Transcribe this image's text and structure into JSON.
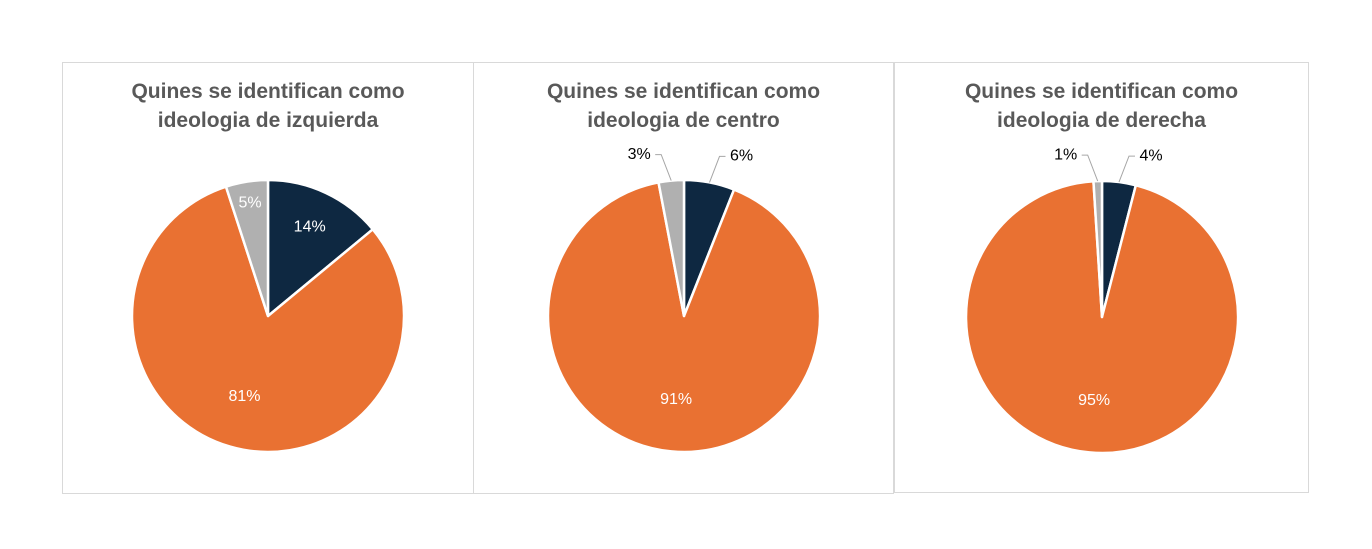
{
  "colors": {
    "dark": "#0e2841",
    "orange": "#e97132",
    "gray": "#b0b0b0"
  },
  "chart_data": [
    {
      "type": "pie",
      "title_lines": [
        "Quines se identifican como",
        "ideologia de izquierda"
      ],
      "slices": [
        {
          "value": 14,
          "label": "14%",
          "color": "dark"
        },
        {
          "value": 81,
          "label": "81%",
          "color": "orange"
        },
        {
          "value": 5,
          "label": "5%",
          "color": "gray"
        }
      ]
    },
    {
      "type": "pie",
      "title_lines": [
        "Quines se identifican como",
        "ideologia de centro"
      ],
      "slices": [
        {
          "value": 6,
          "label": "6%",
          "color": "dark"
        },
        {
          "value": 91,
          "label": "91%",
          "color": "orange"
        },
        {
          "value": 3,
          "label": "3%",
          "color": "gray"
        }
      ]
    },
    {
      "type": "pie",
      "title_lines": [
        "Quines se identifican como",
        "ideologia de derecha"
      ],
      "slices": [
        {
          "value": 4,
          "label": "4%",
          "color": "dark"
        },
        {
          "value": 95,
          "label": "95%",
          "color": "orange"
        },
        {
          "value": 1,
          "label": "1%",
          "color": "gray"
        }
      ]
    }
  ]
}
